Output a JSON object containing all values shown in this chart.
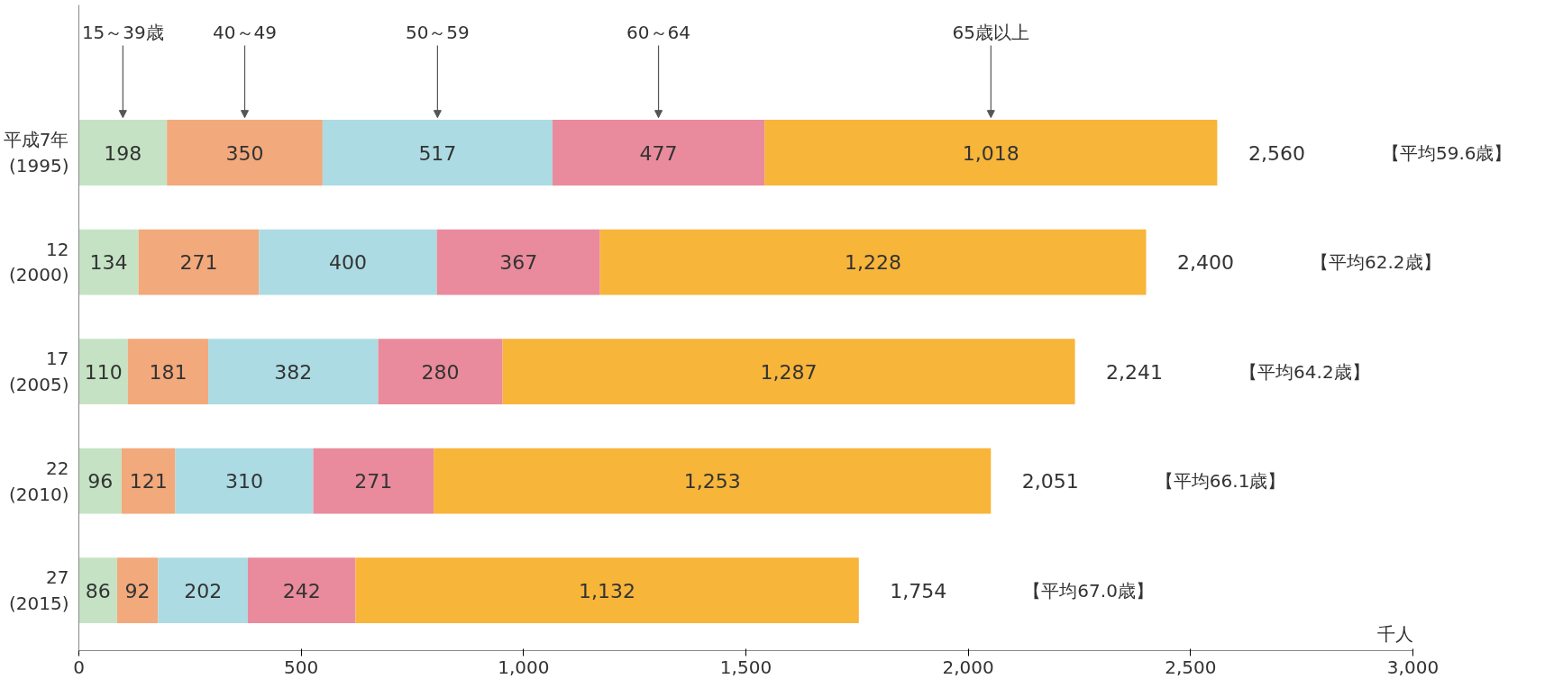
{
  "chart_data": {
    "type": "bar",
    "orientation": "horizontal",
    "stacked": true,
    "xlabel": "千人",
    "categories": [
      "平成7年\n(1995)",
      "12\n(2000)",
      "17\n(2005)",
      "22\n(2010)",
      "27\n(2015)"
    ],
    "series": [
      {
        "name": "15～39歳",
        "color": "#c5e3c4",
        "values": [
          198,
          134,
          110,
          96,
          86
        ],
        "value_labels": [
          "198",
          "134",
          "110",
          "96",
          "86"
        ]
      },
      {
        "name": "40～49",
        "color": "#f2a97c",
        "values": [
          350,
          271,
          181,
          121,
          92
        ],
        "value_labels": [
          "350",
          "271",
          "181",
          "121",
          "92"
        ]
      },
      {
        "name": "50～59",
        "color": "#acdbe3",
        "values": [
          517,
          400,
          382,
          310,
          202
        ],
        "value_labels": [
          "517",
          "400",
          "382",
          "310",
          "202"
        ]
      },
      {
        "name": "60～64",
        "color": "#e98b9c",
        "values": [
          477,
          367,
          280,
          271,
          242
        ],
        "value_labels": [
          "477",
          "367",
          "280",
          "271",
          "242"
        ]
      },
      {
        "name": "65歳以上",
        "color": "#f7b53a",
        "values": [
          1018,
          1228,
          1287,
          1253,
          1132
        ],
        "value_labels": [
          "1,018",
          "1,228",
          "1,287",
          "1,253",
          "1,132"
        ]
      }
    ],
    "totals": [
      "2,560",
      "2,400",
      "2,241",
      "2,051",
      "1,754"
    ],
    "annotations": [
      "【平均59.6歳】",
      "【平均62.2歳】",
      "【平均64.2歳】",
      "【平均66.1歳】",
      "【平均67.0歳】"
    ],
    "xlim": [
      0,
      3000
    ],
    "xticks": [
      0,
      500,
      {
        "value": 1000,
        "label": "1,000"
      },
      {
        "value": 1500,
        "label": "1,500"
      },
      {
        "value": 2000,
        "label": "2,000"
      },
      {
        "value": 2500,
        "label": "2,500"
      },
      {
        "value": 3000,
        "label": "3,000"
      }
    ],
    "legend": "top",
    "grid": false
  }
}
